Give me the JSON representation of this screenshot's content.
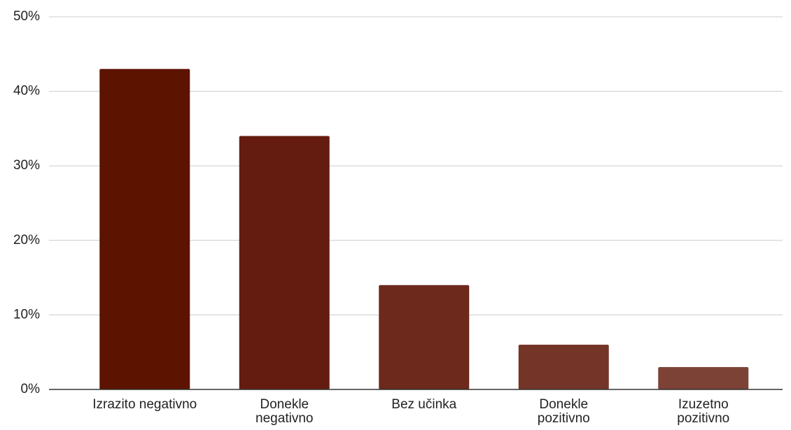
{
  "chart_data": {
    "type": "bar",
    "categories": [
      "Izrazito negativno",
      "Donekle\nnegativno",
      "Bez učinka",
      "Donekle\npozitivno",
      "Izuzetno\npozitivno"
    ],
    "values": [
      43,
      34,
      14,
      6,
      3
    ],
    "colors": [
      "#5c1300",
      "#641c10",
      "#6c291c",
      "#743428",
      "#7d4236"
    ],
    "ylim": [
      0,
      50
    ],
    "yticks": [
      {
        "value": 0,
        "label": "0%"
      },
      {
        "value": 10,
        "label": "10%"
      },
      {
        "value": 20,
        "label": "20%"
      },
      {
        "value": 30,
        "label": "30%"
      },
      {
        "value": 40,
        "label": "40%"
      },
      {
        "value": 50,
        "label": "50%"
      }
    ],
    "grid": true
  }
}
